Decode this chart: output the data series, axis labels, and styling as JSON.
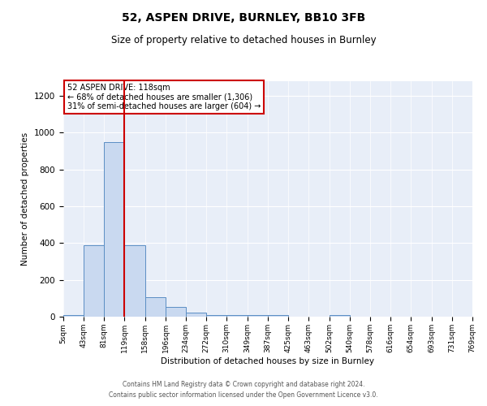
{
  "title": "52, ASPEN DRIVE, BURNLEY, BB10 3FB",
  "subtitle": "Size of property relative to detached houses in Burnley",
  "xlabel": "Distribution of detached houses by size in Burnley",
  "ylabel": "Number of detached properties",
  "bar_color": "#c9d9f0",
  "bar_edge_color": "#5b8ec4",
  "bin_edges": [
    5,
    43,
    81,
    119,
    158,
    196,
    234,
    272,
    310,
    349,
    387,
    425,
    463,
    502,
    540,
    578,
    616,
    654,
    693,
    731,
    769
  ],
  "bin_labels": [
    "5sqm",
    "43sqm",
    "81sqm",
    "119sqm",
    "158sqm",
    "196sqm",
    "234sqm",
    "272sqm",
    "310sqm",
    "349sqm",
    "387sqm",
    "425sqm",
    "463sqm",
    "502sqm",
    "540sqm",
    "578sqm",
    "616sqm",
    "654sqm",
    "693sqm",
    "731sqm",
    "769sqm"
  ],
  "bar_heights": [
    10,
    390,
    950,
    390,
    105,
    52,
    22,
    10,
    10,
    10,
    10,
    0,
    0,
    10,
    0,
    0,
    0,
    0,
    0,
    0
  ],
  "property_line_x": 119,
  "property_line_color": "#cc0000",
  "annotation_line1": "52 ASPEN DRIVE: 118sqm",
  "annotation_line2": "← 68% of detached houses are smaller (1,306)",
  "annotation_line3": "31% of semi-detached houses are larger (604) →",
  "ylim": [
    0,
    1280
  ],
  "yticks": [
    0,
    200,
    400,
    600,
    800,
    1000,
    1200
  ],
  "background_color": "#e8eef8",
  "footer_line1": "Contains HM Land Registry data © Crown copyright and database right 2024.",
  "footer_line2": "Contains public sector information licensed under the Open Government Licence v3.0."
}
